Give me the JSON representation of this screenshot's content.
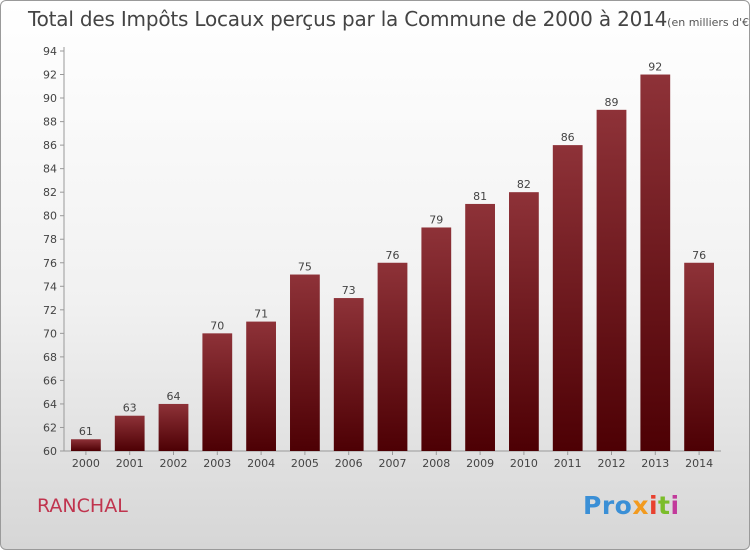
{
  "header": {
    "title": "Total des Impôts Locaux perçus par la Commune de 2000 à 2014",
    "subtitle": "(en milliers d'€)"
  },
  "footer": {
    "commune": "RANCHAL",
    "logo_parts": [
      "Pro",
      "x",
      "i",
      "t",
      "i"
    ]
  },
  "colors": {
    "bar_top": "#8e3238",
    "bar_bottom": "#4d0004",
    "axis_text": "#444444",
    "commune": "#c0344e"
  },
  "chart_data": {
    "type": "bar",
    "title": "Total des Impôts Locaux perçus par la Commune de 2000 à 2014",
    "subtitle": "(en milliers d'€)",
    "xlabel": "",
    "ylabel": "",
    "categories": [
      "2000",
      "2001",
      "2002",
      "2003",
      "2004",
      "2005",
      "2006",
      "2007",
      "2008",
      "2009",
      "2010",
      "2011",
      "2012",
      "2013",
      "2014"
    ],
    "values": [
      61,
      63,
      64,
      70,
      71,
      75,
      73,
      76,
      79,
      81,
      82,
      86,
      89,
      92,
      76
    ],
    "ylim": [
      60,
      94
    ],
    "yticks": [
      60,
      62,
      64,
      66,
      68,
      70,
      72,
      74,
      76,
      78,
      80,
      82,
      84,
      86,
      88,
      90,
      92,
      94
    ],
    "grid": false,
    "data_labels": true
  }
}
